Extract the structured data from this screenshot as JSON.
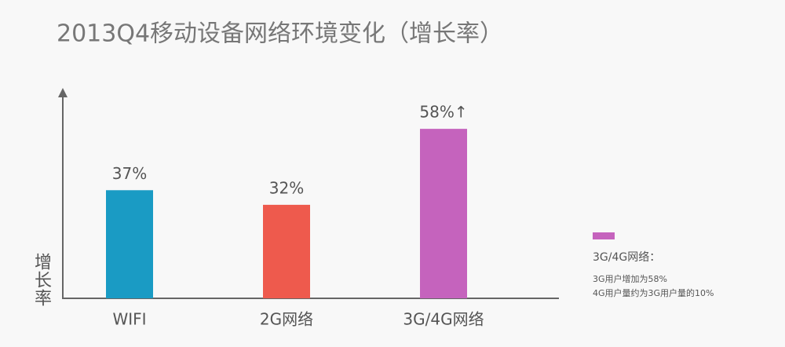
{
  "chart_data": {
    "type": "bar",
    "title": "2013Q4移动设备网络环境变化（增长率）",
    "y_label": "增长率",
    "categories": [
      "WIFI",
      "2G网络",
      "3G/4G网络"
    ],
    "values": [
      37,
      32,
      58
    ],
    "value_labels": [
      "37%",
      "32%",
      "58%↑"
    ],
    "colors": [
      "#1a9bc4",
      "#ee5a4d",
      "#c563bd"
    ],
    "ylim": [
      0,
      72
    ],
    "legend": {
      "color": "#c563bd",
      "title": "3G/4G网络：",
      "notes": [
        "3G用户增加为58%",
        "4G用户量约为3G用户量的10%"
      ]
    }
  }
}
